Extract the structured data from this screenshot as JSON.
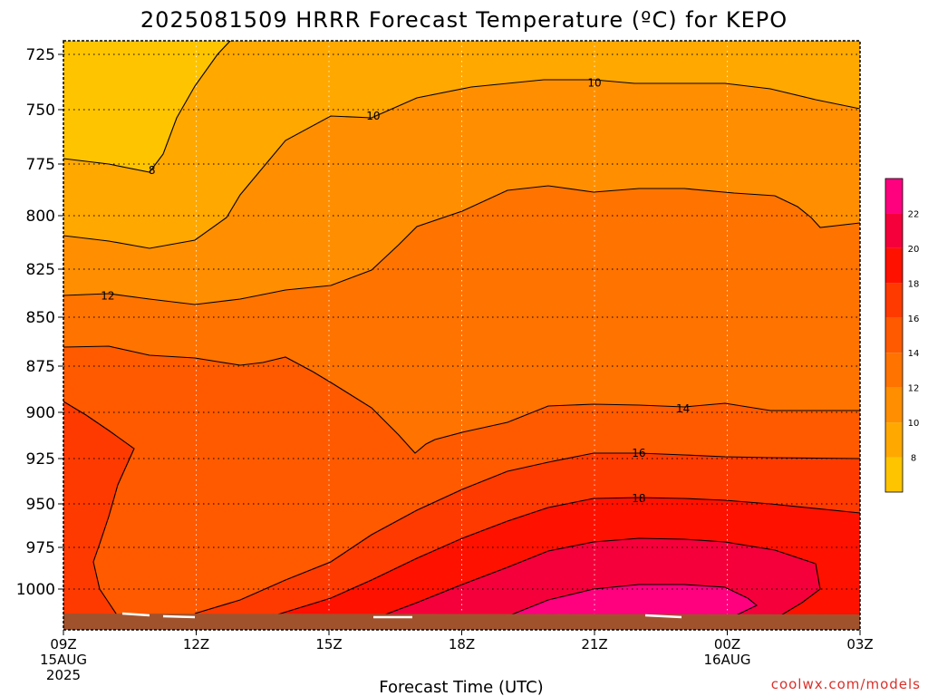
{
  "chart_data": {
    "type": "contour",
    "title": "2025081509 HRRR Forecast Temperature (ºC) for KEPO",
    "xlabel": "Forecast Time (UTC)",
    "ylabel": "",
    "y_axis": {
      "scale": "pressure (hPa), inverted",
      "ticks": [
        "725",
        "750",
        "775",
        "800",
        "825",
        "850",
        "875",
        "900",
        "925",
        "950",
        "975",
        "1000"
      ],
      "range": [
        722,
        1015
      ]
    },
    "x_axis": {
      "ticks": [
        {
          "hour": 0,
          "lines": [
            "09Z",
            "15AUG",
            "2025"
          ]
        },
        {
          "hour": 3,
          "lines": [
            "12Z"
          ]
        },
        {
          "hour": 6,
          "lines": [
            "15Z"
          ]
        },
        {
          "hour": 9,
          "lines": [
            "18Z"
          ]
        },
        {
          "hour": 12,
          "lines": [
            "21Z"
          ]
        },
        {
          "hour": 15,
          "lines": [
            "00Z",
            "16AUG"
          ]
        },
        {
          "hour": 18,
          "lines": [
            "03Z"
          ]
        }
      ],
      "range_hours": [
        0,
        18
      ]
    },
    "colorbar": {
      "levels": [
        8,
        10,
        12,
        14,
        16,
        18,
        20,
        22
      ],
      "labels": [
        "8",
        "10",
        "12",
        "14",
        "16",
        "18",
        "20",
        "22"
      ],
      "colors": [
        "#ffc400",
        "#ffa800",
        "#ff8f00",
        "#ff7300",
        "#ff5a00",
        "#ff3a00",
        "#ff1100",
        "#f5003a",
        "#ff007f"
      ]
    },
    "contour_labels": [
      {
        "text": "8",
        "hour": 2.0,
        "p": 778
      },
      {
        "text": "10",
        "hour": 7.0,
        "p": 753
      },
      {
        "text": "10",
        "hour": 12.0,
        "p": 738
      },
      {
        "text": "12",
        "hour": 1.0,
        "p": 839
      },
      {
        "text": "14",
        "hour": 14.0,
        "p": 898
      },
      {
        "text": "16",
        "hour": 13.0,
        "p": 922
      },
      {
        "text": "18",
        "hour": 13.0,
        "p": 947
      }
    ],
    "grid": true,
    "terrain": "surface shown below ~1012 hPa"
  },
  "footer": {
    "credit": "coolwx.com/models"
  }
}
